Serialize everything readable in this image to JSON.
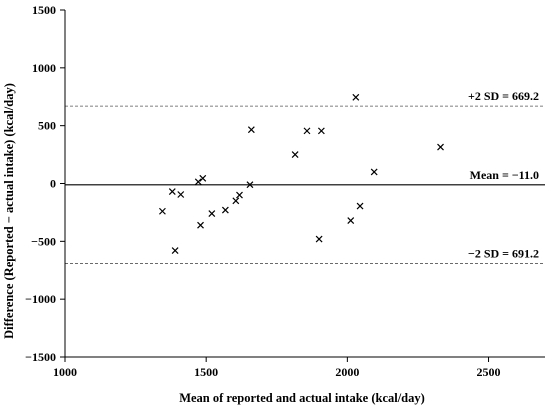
{
  "chart_data": {
    "type": "scatter",
    "xlabel": "Mean of reported and actual intake (kcal/day)",
    "ylabel": "Difference (Reported − actual intake) (kcal/day)",
    "xlim": [
      1000,
      2700
    ],
    "ylim": [
      -1500,
      1500
    ],
    "x_ticks": [
      1000,
      1500,
      2000,
      2500
    ],
    "y_ticks": [
      -1500,
      -1000,
      -500,
      0,
      500,
      1000,
      1500
    ],
    "x_tick_labels": [
      "1000",
      "1500",
      "2000",
      "2500"
    ],
    "y_tick_labels": [
      "−1500",
      "−1000",
      "−500",
      "0",
      "500",
      "1000",
      "1500"
    ],
    "grid": false,
    "marker": "x",
    "reference_lines": [
      {
        "value": -11.0,
        "label": "Mean = −11.0",
        "style": "solid"
      },
      {
        "value": 669.2,
        "label": "+2 SD = 669.2",
        "style": "dashed"
      },
      {
        "value": -691.2,
        "label": "−2 SD = 691.2",
        "style": "dashed"
      }
    ],
    "points": [
      {
        "x": 1345,
        "y": -240
      },
      {
        "x": 1380,
        "y": -70
      },
      {
        "x": 1390,
        "y": -580
      },
      {
        "x": 1410,
        "y": -95
      },
      {
        "x": 1472,
        "y": 15
      },
      {
        "x": 1480,
        "y": -360
      },
      {
        "x": 1488,
        "y": 45
      },
      {
        "x": 1520,
        "y": -260
      },
      {
        "x": 1568,
        "y": -230
      },
      {
        "x": 1605,
        "y": -150
      },
      {
        "x": 1618,
        "y": -100
      },
      {
        "x": 1655,
        "y": -10
      },
      {
        "x": 1660,
        "y": 465
      },
      {
        "x": 1815,
        "y": 250
      },
      {
        "x": 1857,
        "y": 455
      },
      {
        "x": 1900,
        "y": -480
      },
      {
        "x": 1908,
        "y": 455
      },
      {
        "x": 2012,
        "y": -320
      },
      {
        "x": 2030,
        "y": 745
      },
      {
        "x": 2045,
        "y": -195
      },
      {
        "x": 2095,
        "y": 100
      },
      {
        "x": 2330,
        "y": 315
      }
    ]
  }
}
